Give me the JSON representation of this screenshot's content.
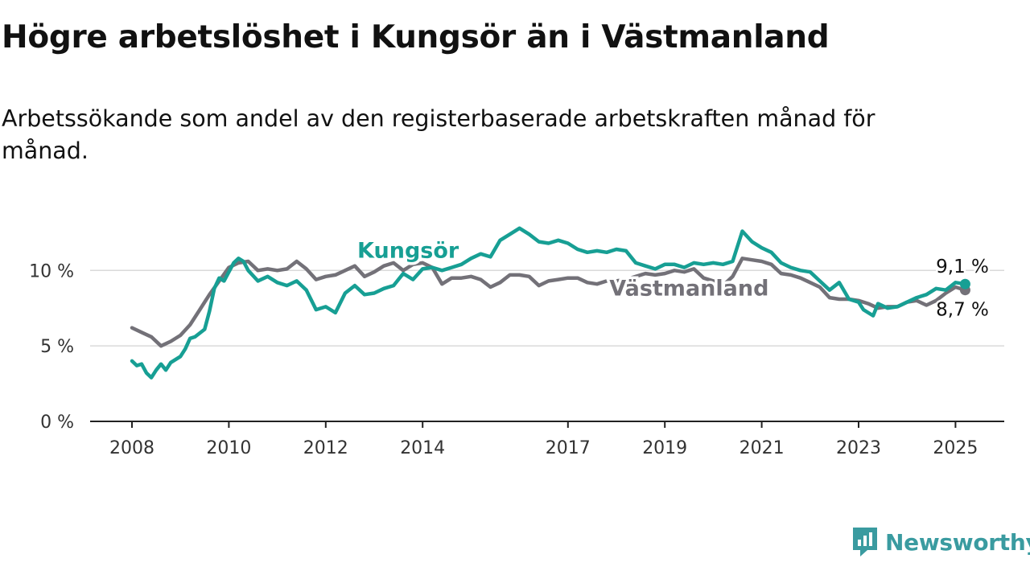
{
  "title": "Högre arbetslöshet i Kungsör än i Västmanland",
  "subtitle": "Arbetssökande som andel av den registerbaserade arbetskraften månad för månad.",
  "brand": {
    "name": "Newsworthy",
    "color": "#3a9ba0",
    "icon": "newsworthy-logo-icon"
  },
  "chart_data": {
    "type": "line",
    "ylim": [
      0,
      13
    ],
    "xlim": [
      2008,
      2025.7
    ],
    "x_ticks": [
      2008,
      2010,
      2012,
      2014,
      2017,
      2019,
      2021,
      2023,
      2025
    ],
    "y_ticks": [
      {
        "value": 0,
        "label": "0 %"
      },
      {
        "value": 5,
        "label": "5 %"
      },
      {
        "value": 10,
        "label": "10 %"
      }
    ],
    "grid": true,
    "series": [
      {
        "name": "Västmanland",
        "color": "#737178",
        "end_label": "8,7 %",
        "points": [
          [
            2008.0,
            6.2
          ],
          [
            2008.2,
            5.9
          ],
          [
            2008.4,
            5.6
          ],
          [
            2008.6,
            5.0
          ],
          [
            2008.8,
            5.3
          ],
          [
            2009.0,
            5.7
          ],
          [
            2009.2,
            6.4
          ],
          [
            2009.4,
            7.4
          ],
          [
            2009.6,
            8.4
          ],
          [
            2009.8,
            9.3
          ],
          [
            2010.0,
            10.2
          ],
          [
            2010.2,
            10.5
          ],
          [
            2010.4,
            10.6
          ],
          [
            2010.6,
            10.0
          ],
          [
            2010.8,
            10.1
          ],
          [
            2011.0,
            10.0
          ],
          [
            2011.2,
            10.1
          ],
          [
            2011.4,
            10.6
          ],
          [
            2011.6,
            10.1
          ],
          [
            2011.8,
            9.4
          ],
          [
            2012.0,
            9.6
          ],
          [
            2012.2,
            9.7
          ],
          [
            2012.4,
            10.0
          ],
          [
            2012.6,
            10.3
          ],
          [
            2012.8,
            9.6
          ],
          [
            2013.0,
            9.9
          ],
          [
            2013.2,
            10.3
          ],
          [
            2013.4,
            10.5
          ],
          [
            2013.6,
            10.0
          ],
          [
            2013.8,
            10.4
          ],
          [
            2014.0,
            10.5
          ],
          [
            2014.2,
            10.2
          ],
          [
            2014.4,
            9.1
          ],
          [
            2014.6,
            9.5
          ],
          [
            2014.8,
            9.5
          ],
          [
            2015.0,
            9.6
          ],
          [
            2015.2,
            9.4
          ],
          [
            2015.4,
            8.9
          ],
          [
            2015.6,
            9.2
          ],
          [
            2015.8,
            9.7
          ],
          [
            2016.0,
            9.7
          ],
          [
            2016.2,
            9.6
          ],
          [
            2016.4,
            9.0
          ],
          [
            2016.6,
            9.3
          ],
          [
            2016.8,
            9.4
          ],
          [
            2017.0,
            9.5
          ],
          [
            2017.2,
            9.5
          ],
          [
            2017.4,
            9.2
          ],
          [
            2017.6,
            9.1
          ],
          [
            2017.8,
            9.3
          ],
          [
            2018.0,
            9.3
          ],
          [
            2018.2,
            9.4
          ],
          [
            2018.4,
            9.6
          ],
          [
            2018.6,
            9.8
          ],
          [
            2018.8,
            9.7
          ],
          [
            2019.0,
            9.8
          ],
          [
            2019.2,
            10.0
          ],
          [
            2019.4,
            9.9
          ],
          [
            2019.6,
            10.1
          ],
          [
            2019.8,
            9.5
          ],
          [
            2020.0,
            9.3
          ],
          [
            2020.2,
            9.0
          ],
          [
            2020.4,
            9.6
          ],
          [
            2020.6,
            10.8
          ],
          [
            2020.8,
            10.7
          ],
          [
            2021.0,
            10.6
          ],
          [
            2021.2,
            10.4
          ],
          [
            2021.4,
            9.8
          ],
          [
            2021.6,
            9.7
          ],
          [
            2021.8,
            9.5
          ],
          [
            2022.0,
            9.2
          ],
          [
            2022.2,
            8.9
          ],
          [
            2022.4,
            8.2
          ],
          [
            2022.6,
            8.1
          ],
          [
            2022.8,
            8.1
          ],
          [
            2023.0,
            8.0
          ],
          [
            2023.2,
            7.8
          ],
          [
            2023.4,
            7.5
          ],
          [
            2023.6,
            7.6
          ],
          [
            2023.8,
            7.6
          ],
          [
            2024.0,
            7.9
          ],
          [
            2024.2,
            8.0
          ],
          [
            2024.4,
            7.7
          ],
          [
            2024.6,
            8.0
          ],
          [
            2024.8,
            8.5
          ],
          [
            2025.0,
            8.9
          ],
          [
            2025.2,
            8.7
          ]
        ]
      },
      {
        "name": "Kungsör",
        "color": "#179f94",
        "end_label": "9,1 %",
        "points": [
          [
            2008.0,
            4.0
          ],
          [
            2008.1,
            3.7
          ],
          [
            2008.2,
            3.8
          ],
          [
            2008.3,
            3.2
          ],
          [
            2008.4,
            2.9
          ],
          [
            2008.5,
            3.4
          ],
          [
            2008.6,
            3.8
          ],
          [
            2008.7,
            3.4
          ],
          [
            2008.8,
            3.9
          ],
          [
            2009.0,
            4.3
          ],
          [
            2009.1,
            4.8
          ],
          [
            2009.2,
            5.5
          ],
          [
            2009.3,
            5.6
          ],
          [
            2009.5,
            6.1
          ],
          [
            2009.6,
            7.3
          ],
          [
            2009.7,
            8.8
          ],
          [
            2009.8,
            9.5
          ],
          [
            2009.9,
            9.3
          ],
          [
            2010.0,
            9.9
          ],
          [
            2010.1,
            10.5
          ],
          [
            2010.2,
            10.8
          ],
          [
            2010.3,
            10.6
          ],
          [
            2010.4,
            10.0
          ],
          [
            2010.6,
            9.3
          ],
          [
            2010.8,
            9.6
          ],
          [
            2011.0,
            9.2
          ],
          [
            2011.2,
            9.0
          ],
          [
            2011.4,
            9.3
          ],
          [
            2011.6,
            8.7
          ],
          [
            2011.8,
            7.4
          ],
          [
            2012.0,
            7.6
          ],
          [
            2012.2,
            7.2
          ],
          [
            2012.4,
            8.5
          ],
          [
            2012.6,
            9.0
          ],
          [
            2012.8,
            8.4
          ],
          [
            2013.0,
            8.5
          ],
          [
            2013.2,
            8.8
          ],
          [
            2013.4,
            9.0
          ],
          [
            2013.6,
            9.8
          ],
          [
            2013.8,
            9.4
          ],
          [
            2014.0,
            10.1
          ],
          [
            2014.2,
            10.2
          ],
          [
            2014.4,
            10.0
          ],
          [
            2014.6,
            10.2
          ],
          [
            2014.8,
            10.4
          ],
          [
            2015.0,
            10.8
          ],
          [
            2015.2,
            11.1
          ],
          [
            2015.4,
            10.9
          ],
          [
            2015.6,
            12.0
          ],
          [
            2015.8,
            12.4
          ],
          [
            2016.0,
            12.8
          ],
          [
            2016.2,
            12.4
          ],
          [
            2016.4,
            11.9
          ],
          [
            2016.6,
            11.8
          ],
          [
            2016.8,
            12.0
          ],
          [
            2017.0,
            11.8
          ],
          [
            2017.2,
            11.4
          ],
          [
            2017.4,
            11.2
          ],
          [
            2017.6,
            11.3
          ],
          [
            2017.8,
            11.2
          ],
          [
            2018.0,
            11.4
          ],
          [
            2018.2,
            11.3
          ],
          [
            2018.4,
            10.5
          ],
          [
            2018.6,
            10.3
          ],
          [
            2018.8,
            10.1
          ],
          [
            2019.0,
            10.4
          ],
          [
            2019.2,
            10.4
          ],
          [
            2019.4,
            10.2
          ],
          [
            2019.6,
            10.5
          ],
          [
            2019.8,
            10.4
          ],
          [
            2020.0,
            10.5
          ],
          [
            2020.2,
            10.4
          ],
          [
            2020.4,
            10.6
          ],
          [
            2020.6,
            12.6
          ],
          [
            2020.8,
            11.9
          ],
          [
            2021.0,
            11.5
          ],
          [
            2021.2,
            11.2
          ],
          [
            2021.4,
            10.5
          ],
          [
            2021.6,
            10.2
          ],
          [
            2021.8,
            10.0
          ],
          [
            2022.0,
            9.9
          ],
          [
            2022.2,
            9.3
          ],
          [
            2022.4,
            8.7
          ],
          [
            2022.6,
            9.2
          ],
          [
            2022.8,
            8.1
          ],
          [
            2023.0,
            7.9
          ],
          [
            2023.1,
            7.4
          ],
          [
            2023.3,
            7.0
          ],
          [
            2023.4,
            7.8
          ],
          [
            2023.6,
            7.5
          ],
          [
            2023.8,
            7.6
          ],
          [
            2024.0,
            7.9
          ],
          [
            2024.2,
            8.2
          ],
          [
            2024.4,
            8.4
          ],
          [
            2024.6,
            8.8
          ],
          [
            2024.8,
            8.7
          ],
          [
            2025.0,
            9.2
          ],
          [
            2025.2,
            9.1
          ]
        ]
      }
    ]
  }
}
